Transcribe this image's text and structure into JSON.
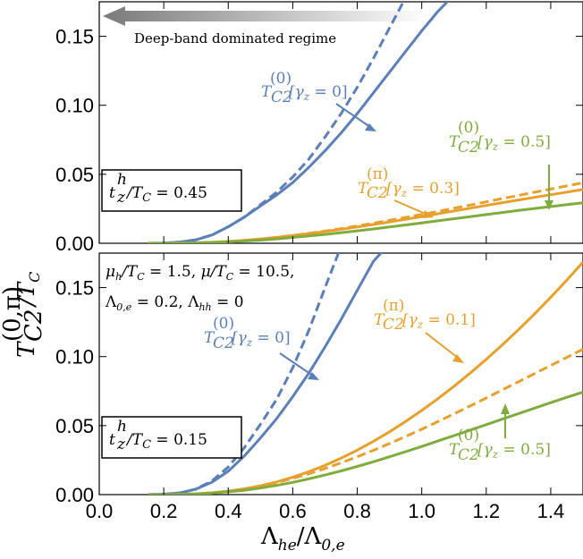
{
  "colors": {
    "blue": "#5b7fb8",
    "orange": "#e8a02c",
    "green": "#7fac3c",
    "arrow_grad_dark": "#8a8a8a"
  },
  "shared": {
    "xlabel": "Λhe/Λ0,e",
    "ylabel": "T(0,π)C2/TC",
    "xlim": [
      0,
      1.5
    ],
    "ylim": [
      0,
      0.175
    ],
    "xticks": [
      "0.0",
      "0.2",
      "0.4",
      "0.6",
      "0.8",
      "1.0",
      "1.2",
      "1.4"
    ],
    "yticks": [
      "0.00",
      "0.05",
      "0.10",
      "0.15"
    ]
  },
  "chart_data": [
    {
      "type": "line",
      "panel": "top",
      "box_label": "t^h_z/T_C = 0.45",
      "banner": "Deep-band dominated regime",
      "x": [
        0.15,
        0.2,
        0.25,
        0.3,
        0.35,
        0.4,
        0.45,
        0.5,
        0.55,
        0.6,
        0.65,
        0.7,
        0.75,
        0.8,
        0.85,
        0.9,
        0.95,
        1.0,
        1.05,
        1.1,
        1.15,
        1.2,
        1.25,
        1.3,
        1.35,
        1.4,
        1.45,
        1.5
      ],
      "series": [
        {
          "label": "T(0)C2[γz = 0]",
          "color": "blue",
          "dash": true,
          "values": [
            0,
            0.0002,
            0.0009,
            0.0025,
            0.006,
            0.012,
            0.019,
            0.028,
            0.037,
            0.048,
            0.061,
            0.077,
            0.094,
            0.113,
            0.134,
            0.156,
            0.178,
            null,
            null,
            null,
            null,
            null,
            null,
            null,
            null,
            null,
            null,
            null
          ]
        },
        {
          "label": "T(0)C2[γz = 0] solid",
          "color": "blue",
          "dash": false,
          "values": [
            0,
            0.0002,
            0.0009,
            0.0025,
            0.006,
            0.012,
            0.019,
            0.027,
            0.035,
            0.044,
            0.055,
            0.067,
            0.08,
            0.094,
            0.109,
            0.124,
            0.139,
            0.154,
            0.168,
            0.18,
            null,
            null,
            null,
            null,
            null,
            null,
            null,
            null
          ]
        },
        {
          "label": "T(π)C2[γz = 0.3]",
          "color": "orange",
          "dash": true,
          "values": [
            0,
            0,
            0.0001,
            0.0003,
            0.0007,
            0.0013,
            0.0021,
            0.0031,
            0.0043,
            0.0057,
            0.0072,
            0.0088,
            0.0106,
            0.0125,
            0.0145,
            0.0166,
            0.0187,
            0.0209,
            0.0231,
            0.0254,
            0.0277,
            0.03,
            0.0324,
            0.0347,
            0.037,
            0.0393,
            0.0416,
            0.0438
          ]
        },
        {
          "label": "T(π)C2[γz = 0.3] solid",
          "color": "orange",
          "dash": false,
          "values": [
            0,
            0,
            0.0001,
            0.0003,
            0.0007,
            0.0013,
            0.0021,
            0.0031,
            0.0043,
            0.0056,
            0.007,
            0.0085,
            0.0101,
            0.0118,
            0.0136,
            0.0155,
            0.0174,
            0.0194,
            0.0214,
            0.0234,
            0.0254,
            0.0274,
            0.0294,
            0.0314,
            0.0333,
            0.0352,
            0.0371,
            0.039
          ]
        },
        {
          "label": "T(0)C2[γz = 0.5]",
          "color": "green",
          "dash": false,
          "values": [
            0,
            0,
            0.0001,
            0.0003,
            0.0006,
            0.001,
            0.0016,
            0.0023,
            0.0032,
            0.0042,
            0.0053,
            0.0064,
            0.0077,
            0.009,
            0.0104,
            0.0118,
            0.0133,
            0.0148,
            0.0163,
            0.0178,
            0.0193,
            0.0208,
            0.0223,
            0.0238,
            0.0252,
            0.0266,
            0.028,
            0.0293
          ]
        }
      ],
      "annotations": [
        {
          "text": "T(0)C2[γz = 0]",
          "color": "blue"
        },
        {
          "text": "T(π)C2[γz = 0.3]",
          "color": "orange"
        },
        {
          "text": "T(0)C2[γz = 0.5]",
          "color": "green"
        }
      ]
    },
    {
      "type": "line",
      "panel": "bottom",
      "box_label": "t^h_z/T_C = 0.15",
      "params_line1": "μh/TC = 1.5, μ/TC = 10.5,",
      "params_line2": "Λ0,e = 0.2, Λhh = 0",
      "x": [
        0.15,
        0.2,
        0.25,
        0.3,
        0.35,
        0.4,
        0.45,
        0.5,
        0.55,
        0.6,
        0.65,
        0.7,
        0.75,
        0.8,
        0.85,
        0.9,
        0.95,
        1.0,
        1.05,
        1.1,
        1.15,
        1.2,
        1.25,
        1.3,
        1.35,
        1.4,
        1.45,
        1.5
      ],
      "series": [
        {
          "label": "T(0)C2[γz = 0] dashed",
          "color": "blue",
          "dash": true,
          "values": [
            0,
            0.0003,
            0.0012,
            0.004,
            0.01,
            0.02,
            0.034,
            0.051,
            0.069,
            0.092,
            0.119,
            0.15,
            0.18,
            null,
            null,
            null,
            null,
            null,
            null,
            null,
            null,
            null,
            null,
            null,
            null,
            null,
            null,
            null
          ]
        },
        {
          "label": "T(0)C2[γz = 0]",
          "color": "blue",
          "dash": false,
          "values": [
            0,
            0.0003,
            0.0012,
            0.004,
            0.009,
            0.017,
            0.028,
            0.041,
            0.055,
            0.071,
            0.088,
            0.107,
            0.127,
            0.148,
            0.169,
            0.182,
            null,
            null,
            null,
            null,
            null,
            null,
            null,
            null,
            null,
            null,
            null,
            null
          ]
        },
        {
          "label": "T(π)C2[γz = 0.1]",
          "color": "orange",
          "dash": false,
          "values": [
            0,
            0,
            0.0002,
            0.0006,
            0.0013,
            0.0025,
            0.0042,
            0.0064,
            0.0092,
            0.0126,
            0.0166,
            0.0212,
            0.0264,
            0.0322,
            0.0386,
            0.0455,
            0.053,
            0.061,
            0.0695,
            0.0785,
            0.088,
            0.098,
            0.1085,
            0.1195,
            0.131,
            0.143,
            0.1555,
            0.1685
          ]
        },
        {
          "label": "T(π)C2[γz = 0.1] dashed",
          "color": "orange",
          "dash": true,
          "values": [
            0,
            0,
            0.0002,
            0.0006,
            0.0013,
            0.0025,
            0.0041,
            0.0062,
            0.0087,
            0.0117,
            0.0151,
            0.0189,
            0.023,
            0.0274,
            0.0321,
            0.037,
            0.0421,
            0.0474,
            0.0529,
            0.0585,
            0.0642,
            0.07,
            0.0759,
            0.0818,
            0.0877,
            0.0936,
            0.0995,
            0.1053
          ]
        },
        {
          "label": "T(0)C2[γz = 0.5]",
          "color": "green",
          "dash": false,
          "values": [
            0,
            0,
            0.0002,
            0.0005,
            0.0011,
            0.002,
            0.0032,
            0.0048,
            0.0067,
            0.0089,
            0.0114,
            0.0142,
            0.0172,
            0.0204,
            0.0238,
            0.0274,
            0.0311,
            0.0349,
            0.0388,
            0.0427,
            0.0467,
            0.0507,
            0.0547,
            0.0587,
            0.0627,
            0.0666,
            0.0705,
            0.0743
          ]
        }
      ],
      "annotations": [
        {
          "text": "T(0)C2[γz = 0]",
          "color": "blue"
        },
        {
          "text": "T(π)C2[γz = 0.1]",
          "color": "orange"
        },
        {
          "text": "T(0)C2[γz = 0.5]",
          "color": "green"
        }
      ]
    }
  ]
}
